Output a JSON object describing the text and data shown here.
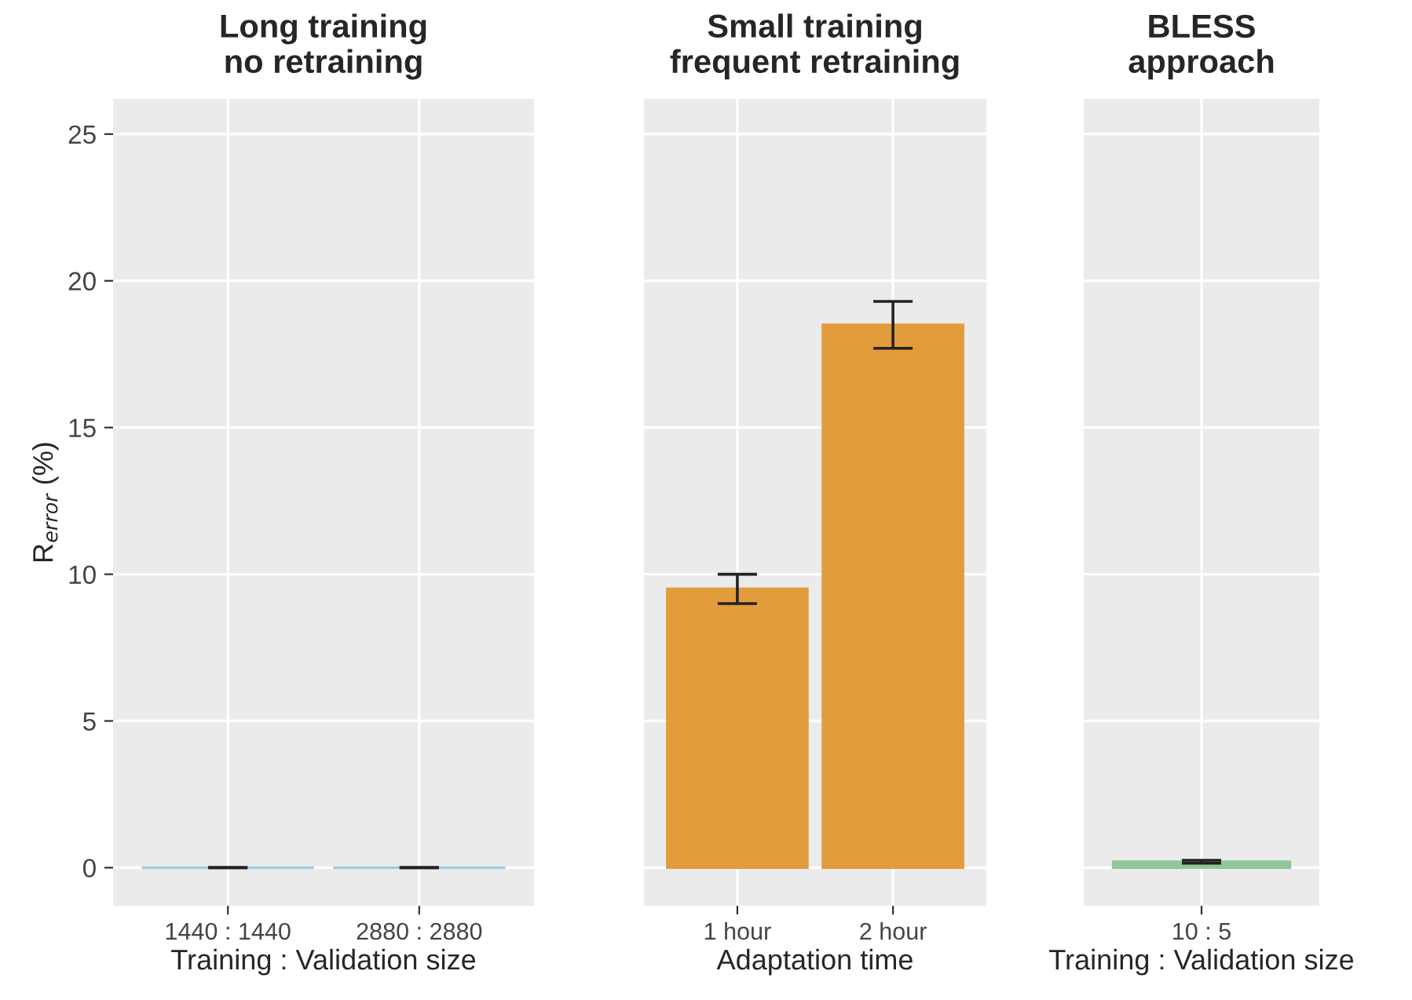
{
  "chart_data": [
    {
      "type": "bar",
      "title": "Long training\nno retraining",
      "xlabel": "Training : Validation size",
      "ylabel": "R$_{error}$ (%)",
      "categories": [
        "1440 : 1440",
        "2880 : 2880"
      ],
      "values": [
        0,
        0
      ],
      "errors": [
        0,
        0
      ],
      "color": "#9ecae1",
      "ylim": [
        -1.3,
        26.2
      ],
      "yticks": [
        0,
        5,
        10,
        15,
        20,
        25
      ],
      "grid": true
    },
    {
      "type": "bar",
      "title": "Small training\nfrequent retraining",
      "xlabel": "Adaptation time",
      "categories": [
        "1 hour",
        "2 hour"
      ],
      "values": [
        9.5,
        18.5
      ],
      "errors": [
        0.5,
        0.8
      ],
      "color": "#e39c3c",
      "ylim": [
        -1.3,
        26.2
      ],
      "tick_labels": "x",
      "grid": true
    },
    {
      "type": "bar",
      "title": "BLESS\napproach",
      "xlabel": "Training : Validation size",
      "categories": [
        "10 : 5"
      ],
      "values": [
        0.2
      ],
      "errors": [
        0.05
      ],
      "color": "#8fc79a",
      "ylim": [
        -1.3,
        26.2
      ],
      "tick_labels": "x",
      "grid": true
    }
  ]
}
